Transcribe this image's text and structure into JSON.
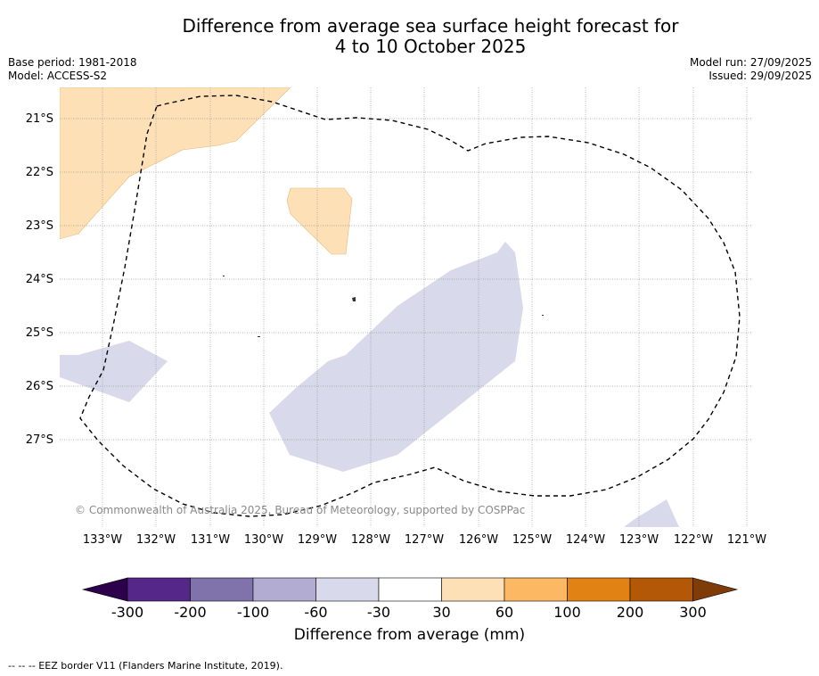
{
  "title": {
    "line1": "Difference from average sea surface height forecast for",
    "line2": "4 to 10 October 2025"
  },
  "meta": {
    "base_period": "Base period: 1981-2018",
    "model": "Model: ACCESS-S2",
    "model_run": "Model run: 27/09/2025",
    "issued": "Issued: 29/09/2025"
  },
  "axes": {
    "lat_labels": [
      "21°S",
      "22°S",
      "23°S",
      "24°S",
      "25°S",
      "26°S",
      "27°S"
    ],
    "lon_labels": [
      "133°W",
      "132°W",
      "131°W",
      "130°W",
      "129°W",
      "128°W",
      "127°W",
      "126°W",
      "125°W",
      "124°W",
      "123°W",
      "122°W",
      "121°W"
    ]
  },
  "copyright": "© Commonwealth of Australia 2025, Bureau of Meteorology, supported by COSPPac",
  "colorbar": {
    "ticks": [
      "-300",
      "-200",
      "-100",
      "-60",
      "-30",
      "30",
      "60",
      "100",
      "200",
      "300"
    ],
    "colors": {
      "below_min": "#2d004b",
      "bin_300_200": "#542788",
      "bin_200_100": "#8073ac",
      "bin_100_60": "#b2abd2",
      "bin_60_30": "#d8daeb",
      "bin_30_30": "#ffffff",
      "bin_30_60": "#fee0b6",
      "bin_60_100": "#fdb863",
      "bin_100_200": "#e08214",
      "bin_200_300": "#b35806",
      "above_max": "#7f3b08"
    },
    "label": "Difference from average (mm)"
  },
  "footer": "--  --  -- EEZ border V11 (Flanders Marine Institute, 2019)."
}
